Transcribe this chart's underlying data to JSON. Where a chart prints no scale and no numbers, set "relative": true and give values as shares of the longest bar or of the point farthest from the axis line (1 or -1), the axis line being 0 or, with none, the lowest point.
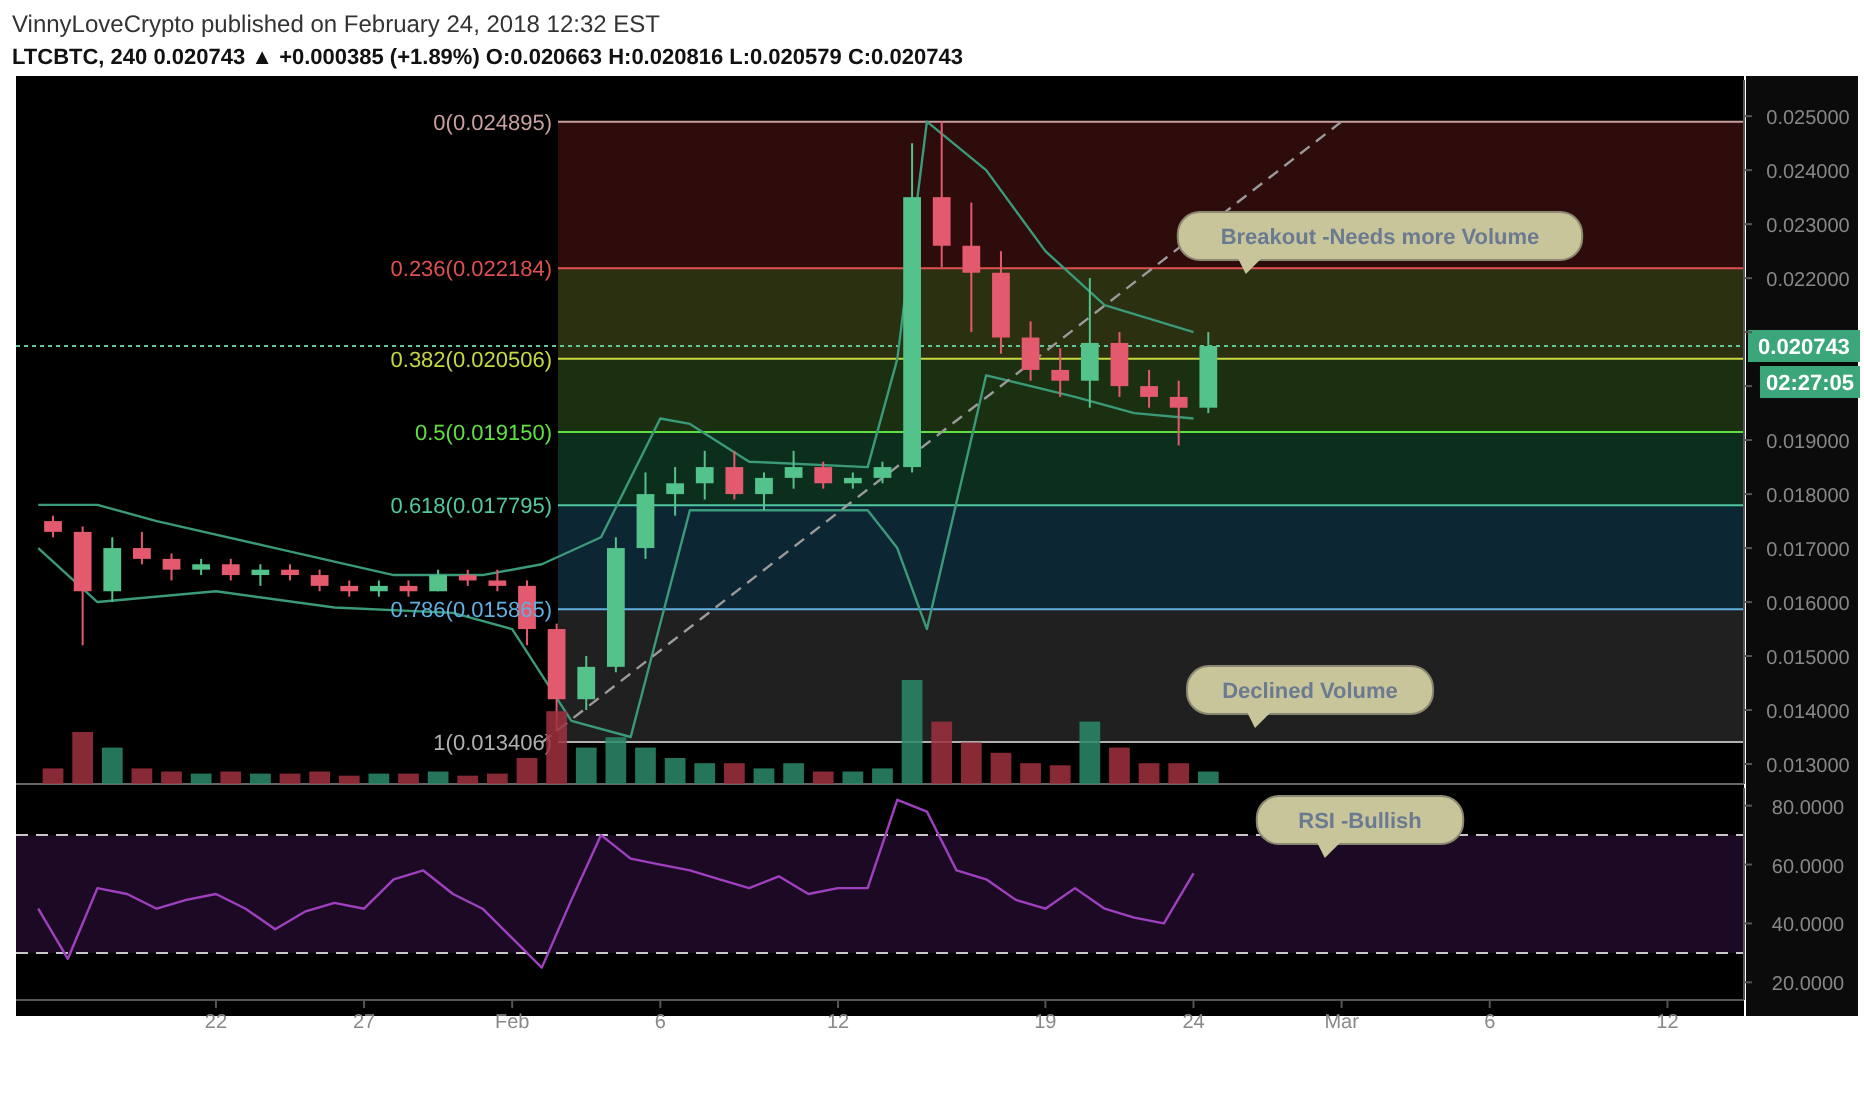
{
  "chart_data": [
    {
      "type": "candlestick",
      "title": "VinnyLoveCrypto published on February 24, 2018 12:32 EST",
      "subtitle": "LTCBTC, 240 0.020743 ▲ +0.000385 (+1.89%) O:0.020663 H:0.020816 L:0.020579 C:0.020743",
      "x": [
        "2018-01-16T12:00",
        "2018-01-17T12:00",
        "2018-01-18T12:00",
        "2018-01-19T12:00",
        "2018-01-20T12:00",
        "2018-01-21T12:00",
        "2018-01-22T12:00",
        "2018-01-23T12:00",
        "2018-01-24T12:00",
        "2018-01-25T12:00",
        "2018-01-26T12:00",
        "2018-01-27T12:00",
        "2018-01-28T12:00",
        "2018-01-29T12:00",
        "2018-01-30T12:00",
        "2018-01-31T12:00",
        "2018-02-01T12:00",
        "2018-02-02T12:00",
        "2018-02-03T12:00",
        "2018-02-04T12:00",
        "2018-02-05T12:00",
        "2018-02-06T12:00",
        "2018-02-07T12:00",
        "2018-02-08T12:00",
        "2018-02-09T12:00",
        "2018-02-10T12:00",
        "2018-02-11T12:00",
        "2018-02-12T12:00",
        "2018-02-13T12:00",
        "2018-02-14T12:00",
        "2018-02-15T12:00",
        "2018-02-16T12:00",
        "2018-02-17T12:00",
        "2018-02-18T12:00",
        "2018-02-19T12:00",
        "2018-02-20T12:00",
        "2018-02-21T12:00",
        "2018-02-22T12:00",
        "2018-02-23T12:00",
        "2018-02-24T12:00"
      ],
      "ohlc": [
        [
          0.0175,
          0.0176,
          0.0172,
          0.0173
        ],
        [
          0.0173,
          0.0174,
          0.0152,
          0.0162
        ],
        [
          0.0162,
          0.0172,
          0.016,
          0.017
        ],
        [
          0.017,
          0.0173,
          0.0167,
          0.0168
        ],
        [
          0.0168,
          0.0169,
          0.0164,
          0.0166
        ],
        [
          0.0166,
          0.0168,
          0.0165,
          0.0167
        ],
        [
          0.0167,
          0.0168,
          0.0164,
          0.0165
        ],
        [
          0.0165,
          0.0167,
          0.0163,
          0.0166
        ],
        [
          0.0166,
          0.0167,
          0.0164,
          0.0165
        ],
        [
          0.0165,
          0.0166,
          0.0162,
          0.0163
        ],
        [
          0.0163,
          0.0164,
          0.0161,
          0.0162
        ],
        [
          0.0162,
          0.0164,
          0.0161,
          0.0163
        ],
        [
          0.0163,
          0.0164,
          0.0161,
          0.0162
        ],
        [
          0.0162,
          0.0166,
          0.0162,
          0.0165
        ],
        [
          0.0165,
          0.0166,
          0.0163,
          0.0164
        ],
        [
          0.0164,
          0.0166,
          0.0162,
          0.0163
        ],
        [
          0.0163,
          0.0164,
          0.0152,
          0.0155
        ],
        [
          0.0155,
          0.0156,
          0.0136,
          0.0142
        ],
        [
          0.0142,
          0.015,
          0.014,
          0.0148
        ],
        [
          0.0148,
          0.0172,
          0.0147,
          0.017
        ],
        [
          0.017,
          0.0184,
          0.0168,
          0.018
        ],
        [
          0.018,
          0.0185,
          0.0176,
          0.0182
        ],
        [
          0.0182,
          0.0188,
          0.0179,
          0.0185
        ],
        [
          0.0185,
          0.0188,
          0.0179,
          0.018
        ],
        [
          0.018,
          0.0184,
          0.0177,
          0.0183
        ],
        [
          0.0183,
          0.0188,
          0.0181,
          0.0185
        ],
        [
          0.0185,
          0.0186,
          0.0181,
          0.0182
        ],
        [
          0.0182,
          0.0184,
          0.0181,
          0.0183
        ],
        [
          0.0183,
          0.0186,
          0.0182,
          0.0185
        ],
        [
          0.0185,
          0.0245,
          0.0184,
          0.0235
        ],
        [
          0.0235,
          0.0249,
          0.0222,
          0.0226
        ],
        [
          0.0226,
          0.0234,
          0.021,
          0.0221
        ],
        [
          0.0221,
          0.0225,
          0.0206,
          0.0209
        ],
        [
          0.0209,
          0.0212,
          0.0201,
          0.0203
        ],
        [
          0.0203,
          0.0207,
          0.0198,
          0.0201
        ],
        [
          0.0201,
          0.022,
          0.0196,
          0.0208
        ],
        [
          0.0208,
          0.021,
          0.0198,
          0.02
        ],
        [
          0.02,
          0.0203,
          0.0196,
          0.0198
        ],
        [
          0.0198,
          0.0201,
          0.0189,
          0.0196
        ],
        [
          0.0196,
          0.021,
          0.0195,
          0.020743
        ]
      ],
      "series": [
        {
          "type": "line",
          "color": "#3a9a7a",
          "x": [
            "2018-01-16",
            "2018-01-18",
            "2018-01-20",
            "2018-01-24",
            "2018-01-28",
            "2018-01-31",
            "2018-02-02",
            "2018-02-04",
            "2018-02-06",
            "2018-02-07",
            "2018-02-09",
            "2018-02-13",
            "2018-02-14",
            "2018-02-15",
            "2018-02-17",
            "2018-02-19",
            "2018-02-21",
            "2018-02-24"
          ],
          "values": [
            0.0178,
            0.0178,
            0.0175,
            0.017,
            0.0165,
            0.0165,
            0.0167,
            0.0172,
            0.0194,
            0.0193,
            0.0186,
            0.0185,
            0.0205,
            0.0249,
            0.024,
            0.0225,
            0.0215,
            0.021
          ]
        },
        {
          "type": "line",
          "color": "#3a9a7a",
          "x": [
            "2018-01-16",
            "2018-01-18",
            "2018-01-22",
            "2018-01-26",
            "2018-01-30",
            "2018-02-01",
            "2018-02-03",
            "2018-02-05",
            "2018-02-07",
            "2018-02-13",
            "2018-02-14",
            "2018-02-15",
            "2018-02-17",
            "2018-02-20",
            "2018-02-22",
            "2018-02-24"
          ],
          "values": [
            0.017,
            0.016,
            0.0162,
            0.0159,
            0.0158,
            0.0155,
            0.0138,
            0.0135,
            0.0177,
            0.0177,
            0.017,
            0.0155,
            0.0202,
            0.0198,
            0.0195,
            0.0194
          ]
        },
        {
          "type": "line",
          "color": "#9a9a9a",
          "line_style": "dashed",
          "x": [
            "2018-02-02",
            "2018-03-01"
          ],
          "values": [
            0.0134,
            0.0249
          ]
        }
      ],
      "ref_lines": [
        {
          "axis": "y",
          "value": 0.024895,
          "label": "0(0.024895)",
          "color": "#c8a0a0"
        },
        {
          "axis": "y",
          "value": 0.022184,
          "label": "0.236(0.022184)",
          "color": "#e05050"
        },
        {
          "axis": "y",
          "value": 0.020506,
          "label": "0.382(0.020506)",
          "color": "#c8d840"
        },
        {
          "axis": "y",
          "value": 0.01915,
          "label": "0.5(0.019150)",
          "color": "#60e040"
        },
        {
          "axis": "y",
          "value": 0.017795,
          "label": "0.618(0.017795)",
          "color": "#50c8a0"
        },
        {
          "axis": "y",
          "value": 0.015865,
          "label": "0.786(0.015865)",
          "color": "#60b0e0"
        },
        {
          "axis": "y",
          "value": 0.013406,
          "label": "1(0.013406)",
          "color": "#b0b0b0"
        },
        {
          "axis": "y",
          "value": 0.020743,
          "label": "0.020743",
          "color": "#5fc8a0",
          "line_style": "dotted"
        }
      ],
      "bands": [
        {
          "axis": "y",
          "from": 0.022184,
          "to": 0.024895,
          "color": "#2e0c0c"
        },
        {
          "axis": "y",
          "from": 0.020506,
          "to": 0.022184,
          "color": "#2a3010"
        },
        {
          "axis": "y",
          "from": 0.01915,
          "to": 0.020506,
          "color": "#1a3010"
        },
        {
          "axis": "y",
          "from": 0.017795,
          "to": 0.01915,
          "color": "#0c2e1c"
        },
        {
          "axis": "y",
          "from": 0.015865,
          "to": 0.017795,
          "color": "#0c2634"
        },
        {
          "axis": "y",
          "from": 0.013406,
          "to": 0.015865,
          "color": "#202020"
        }
      ],
      "annotations": [
        "Breakout -Needs more Volume",
        "02:27:05"
      ],
      "xlim": [
        "2018-01-15T06:00",
        "2018-03-14T14:00"
      ],
      "ylim": [
        0.01263,
        0.02567
      ],
      "yticks": [
        {
          "value": 0.013,
          "label": "0.013000"
        },
        {
          "value": 0.014,
          "label": "0.014000"
        },
        {
          "value": 0.015,
          "label": "0.015000"
        },
        {
          "value": 0.016,
          "label": "0.016000"
        },
        {
          "value": 0.017,
          "label": "0.017000"
        },
        {
          "value": 0.018,
          "label": "0.018000"
        },
        {
          "value": 0.019,
          "label": "0.019000"
        },
        {
          "value": 0.02,
          "label": null
        },
        {
          "value": 0.021,
          "label": null
        },
        {
          "value": 0.022,
          "label": "0.022000"
        },
        {
          "value": 0.023,
          "label": "0.023000"
        },
        {
          "value": 0.024,
          "label": "0.024000"
        },
        {
          "value": 0.025,
          "label": "0.025000"
        }
      ],
      "tick_labels": "y"
    },
    {
      "type": "bar",
      "relative": true,
      "categories": [
        null,
        null,
        null,
        null,
        null,
        null,
        null,
        null,
        null,
        null,
        null,
        null,
        null,
        null,
        null,
        null,
        null,
        null,
        null,
        null,
        null,
        null,
        null,
        null,
        null,
        null,
        null,
        null,
        null,
        null,
        null,
        null,
        null,
        null,
        null,
        null,
        null,
        null,
        null,
        null
      ],
      "values": [
        0.15,
        0.5,
        0.35,
        0.15,
        0.12,
        0.1,
        0.12,
        0.1,
        0.1,
        0.12,
        0.08,
        0.1,
        0.1,
        0.12,
        0.08,
        0.1,
        0.25,
        0.7,
        0.35,
        0.45,
        0.35,
        0.25,
        0.2,
        0.2,
        0.15,
        0.2,
        0.12,
        0.12,
        0.15,
        1,
        0.6,
        0.4,
        0.3,
        0.2,
        0.18,
        0.6,
        0.35,
        0.2,
        0.2,
        0.12
      ],
      "colors": [
        "#a03040",
        "#a03040",
        "#2a8a6a",
        "#a03040",
        "#a03040",
        "#2a8a6a",
        "#a03040",
        "#2a8a6a",
        "#a03040",
        "#a03040",
        "#a03040",
        "#2a8a6a",
        "#a03040",
        "#2a8a6a",
        "#a03040",
        "#a03040",
        "#a03040",
        "#a03040",
        "#2a8a6a",
        "#2a8a6a",
        "#2a8a6a",
        "#2a8a6a",
        "#2a8a6a",
        "#a03040",
        "#2a8a6a",
        "#2a8a6a",
        "#a03040",
        "#2a8a6a",
        "#2a8a6a",
        "#2a8a6a",
        "#a03040",
        "#a03040",
        "#a03040",
        "#a03040",
        "#a03040",
        "#2a8a6a",
        "#a03040",
        "#a03040",
        "#a03040",
        "#2a8a6a"
      ],
      "annotations": [
        "Declined Volume"
      ],
      "tick_labels": false
    },
    {
      "type": "line",
      "x": [
        "2018-01-16",
        "2018-01-17",
        "2018-01-18",
        "2018-01-19",
        "2018-01-20",
        "2018-01-21",
        "2018-01-22",
        "2018-01-23",
        "2018-01-24",
        "2018-01-25",
        "2018-01-26",
        "2018-01-27",
        "2018-01-28",
        "2018-01-29",
        "2018-01-30",
        "2018-01-31",
        "2018-02-01",
        "2018-02-02",
        "2018-02-03",
        "2018-02-04",
        "2018-02-05",
        "2018-02-06",
        "2018-02-07",
        "2018-02-08",
        "2018-02-09",
        "2018-02-10",
        "2018-02-11",
        "2018-02-12",
        "2018-02-13",
        "2018-02-14",
        "2018-02-15",
        "2018-02-16",
        "2018-02-17",
        "2018-02-18",
        "2018-02-19",
        "2018-02-20",
        "2018-02-21",
        "2018-02-22",
        "2018-02-23",
        "2018-02-24"
      ],
      "series": [
        {
          "color": "#a040c0",
          "values": [
            45,
            28,
            52,
            50,
            45,
            48,
            50,
            45,
            38,
            44,
            47,
            45,
            55,
            58,
            50,
            45,
            35,
            25,
            48,
            70,
            62,
            60,
            58,
            55,
            52,
            56,
            50,
            52,
            52,
            82,
            78,
            58,
            55,
            48,
            45,
            52,
            45,
            42,
            40,
            57
          ]
        }
      ],
      "ref_lines": [
        {
          "axis": "y",
          "value": 70,
          "color": "#c8c8c8",
          "line_style": "dashed"
        },
        {
          "axis": "y",
          "value": 30,
          "color": "#c8c8c8",
          "line_style": "dashed"
        }
      ],
      "bands": [
        {
          "axis": "y",
          "from": 30,
          "to": 70,
          "color": "#1c0a24"
        }
      ],
      "annotations": [
        "RSI -Bullish"
      ],
      "xlim": [
        "2018-01-15T06:00",
        "2018-03-14T14:00"
      ],
      "ylim": [
        14,
        86
      ],
      "yticks": [
        {
          "value": 20,
          "label": "20.0000"
        },
        {
          "value": 40,
          "label": "40.0000"
        },
        {
          "value": 60,
          "label": "60.0000"
        },
        {
          "value": 80,
          "label": "80.0000"
        }
      ],
      "xticks": [
        {
          "value": "2018-01-22",
          "label": "22"
        },
        {
          "value": "2018-01-27",
          "label": "27"
        },
        {
          "value": "2018-02-01",
          "label": "Feb"
        },
        {
          "value": "2018-02-06",
          "label": "6"
        },
        {
          "value": "2018-02-12",
          "label": "12"
        },
        {
          "value": "2018-02-19",
          "label": "19"
        },
        {
          "value": "2018-02-24",
          "label": "24"
        },
        {
          "value": "2018-03-01",
          "label": "Mar"
        },
        {
          "value": "2018-03-06",
          "label": "6"
        },
        {
          "value": "2018-03-12",
          "label": "12"
        }
      ]
    }
  ]
}
